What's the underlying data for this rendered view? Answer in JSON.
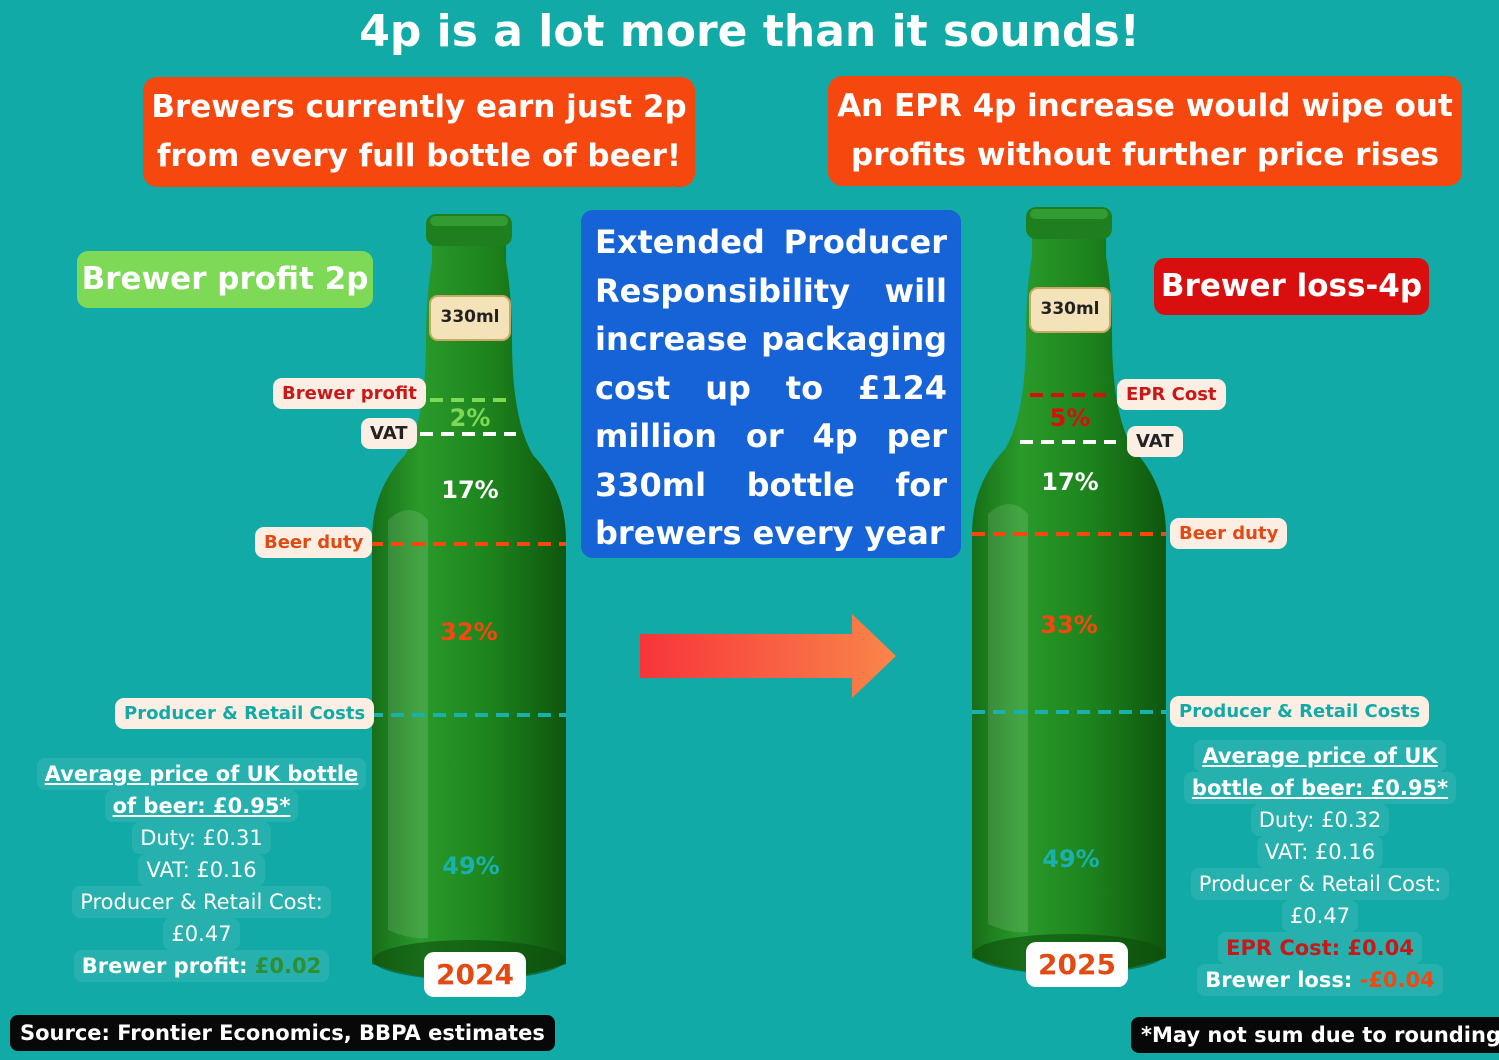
{
  "title": "4p is a lot more than it sounds!",
  "callout_left": [
    "Brewers currently earn just 2p",
    "from every full bottle of beer!"
  ],
  "callout_right": [
    "An EPR 4p increase would wipe out",
    "profits without further price rises"
  ],
  "epr_text": "Extended Producer Responsibility will increase packaging cost up to £124 million or 4p per 330ml bottle for brewers every year",
  "left": {
    "badge": "Brewer profit 2p",
    "bottle_label": "330ml",
    "year": "2024",
    "tags": {
      "profit": "Brewer profit",
      "vat": "VAT",
      "duty": "Beer duty",
      "costs": "Producer & Retail Costs"
    },
    "pcts": {
      "profit": "2%",
      "vat": "17%",
      "duty": "32%",
      "costs": "49%"
    },
    "summary": {
      "head1": "Average price of UK bottle",
      "head2": "of beer: £0.95*",
      "duty": "Duty: £0.31",
      "vat": "VAT: £0.16",
      "cost1": "Producer & Retail Cost:",
      "cost2": "£0.47",
      "profit_label": "Brewer profit:",
      "profit_value": "£0.02"
    }
  },
  "right": {
    "badge": "Brewer loss-4p",
    "bottle_label": "330ml",
    "year": "2025",
    "tags": {
      "epr": "EPR Cost",
      "vat": "VAT",
      "duty": "Beer duty",
      "costs": "Producer & Retail Costs"
    },
    "pcts": {
      "epr": "5%",
      "vat": "17%",
      "duty": "33%",
      "costs": "49%"
    },
    "summary": {
      "head1": "Average price of UK",
      "head2": "bottle of beer: £0.95*",
      "duty": "Duty: £0.32",
      "vat": "VAT: £0.16",
      "cost1": "Producer & Retail Cost:",
      "cost2": "£0.47",
      "epr": "EPR Cost: £0.04",
      "loss_label": "Brewer loss:",
      "loss_value": "-£0.04"
    }
  },
  "source": "Source: Frontier Economics, BBPA estimates",
  "footnote": "*May not sum due to rounding",
  "colors": {
    "background": "#12aaa6",
    "callout": "#f6470f",
    "epr_box": "#1563d6",
    "profit_green": "#7ed957",
    "loss_red": "#d90f0f",
    "duty_orange": "#f6470f",
    "cost_teal": "#1ab0ad",
    "bottle_green": "#1f8a1f"
  },
  "icons": {
    "arrow": "right-arrow-icon",
    "bottle": "beer-bottle-icon"
  }
}
